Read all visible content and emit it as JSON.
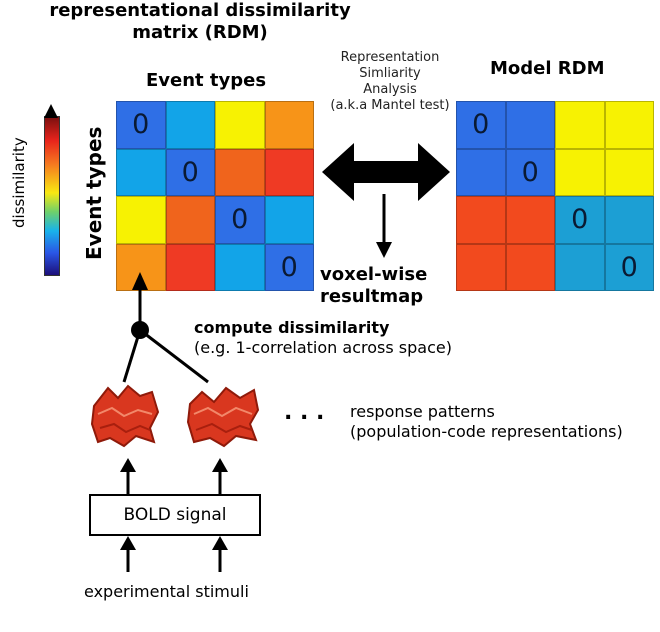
{
  "title_line1": "representational dissimilarity",
  "title_line2": "matrix (RDM)",
  "event_types_header": "Event types",
  "event_types_side": "Event types",
  "model_rdm_header": "Model RDM",
  "rsa": {
    "line1": "Representation",
    "line2": "Simliarity",
    "line3": "Analysis",
    "line4": "(a.k.a Mantel test)"
  },
  "colorbar_label": "dissimilarity",
  "voxel_line1": "voxel-wise",
  "voxel_line2": "resultmap",
  "compute_title": "compute dissimilarity",
  "compute_sub": "(e.g. 1-correlation across space)",
  "dots": ". . .",
  "response_line1": "response patterns",
  "response_line2": "(population-code representations)",
  "bold_signal": "BOLD signal",
  "stimuli": "experimental stimuli",
  "colors": {
    "blue": "#2f6fe6",
    "lightblue": "#12a4e8",
    "yellow": "#f7f202",
    "orange": "#f79418",
    "darkorange": "#f0641c",
    "red": "#ef3a24",
    "modelred": "#f24a1e",
    "modelblue": "#1c9fd4"
  },
  "event_rdm": [
    [
      {
        "c": "blue",
        "t": "0"
      },
      {
        "c": "lightblue",
        "t": ""
      },
      {
        "c": "yellow",
        "t": ""
      },
      {
        "c": "orange",
        "t": ""
      }
    ],
    [
      {
        "c": "lightblue",
        "t": ""
      },
      {
        "c": "blue",
        "t": "0"
      },
      {
        "c": "darkorange",
        "t": ""
      },
      {
        "c": "red",
        "t": ""
      }
    ],
    [
      {
        "c": "yellow",
        "t": ""
      },
      {
        "c": "darkorange",
        "t": ""
      },
      {
        "c": "blue",
        "t": "0"
      },
      {
        "c": "lightblue",
        "t": ""
      }
    ],
    [
      {
        "c": "orange",
        "t": ""
      },
      {
        "c": "red",
        "t": ""
      },
      {
        "c": "lightblue",
        "t": ""
      },
      {
        "c": "blue",
        "t": "0"
      }
    ]
  ],
  "model_rdm": [
    [
      {
        "c": "blue",
        "t": "0"
      },
      {
        "c": "blue",
        "t": ""
      },
      {
        "c": "yellow",
        "t": ""
      },
      {
        "c": "yellow",
        "t": ""
      }
    ],
    [
      {
        "c": "blue",
        "t": ""
      },
      {
        "c": "blue",
        "t": "0"
      },
      {
        "c": "yellow",
        "t": ""
      },
      {
        "c": "yellow",
        "t": ""
      }
    ],
    [
      {
        "c": "modelred",
        "t": ""
      },
      {
        "c": "modelred",
        "t": ""
      },
      {
        "c": "modelblue",
        "t": "0"
      },
      {
        "c": "modelblue",
        "t": ""
      }
    ],
    [
      {
        "c": "modelred",
        "t": ""
      },
      {
        "c": "modelred",
        "t": ""
      },
      {
        "c": "modelblue",
        "t": ""
      },
      {
        "c": "modelblue",
        "t": "0"
      }
    ]
  ]
}
